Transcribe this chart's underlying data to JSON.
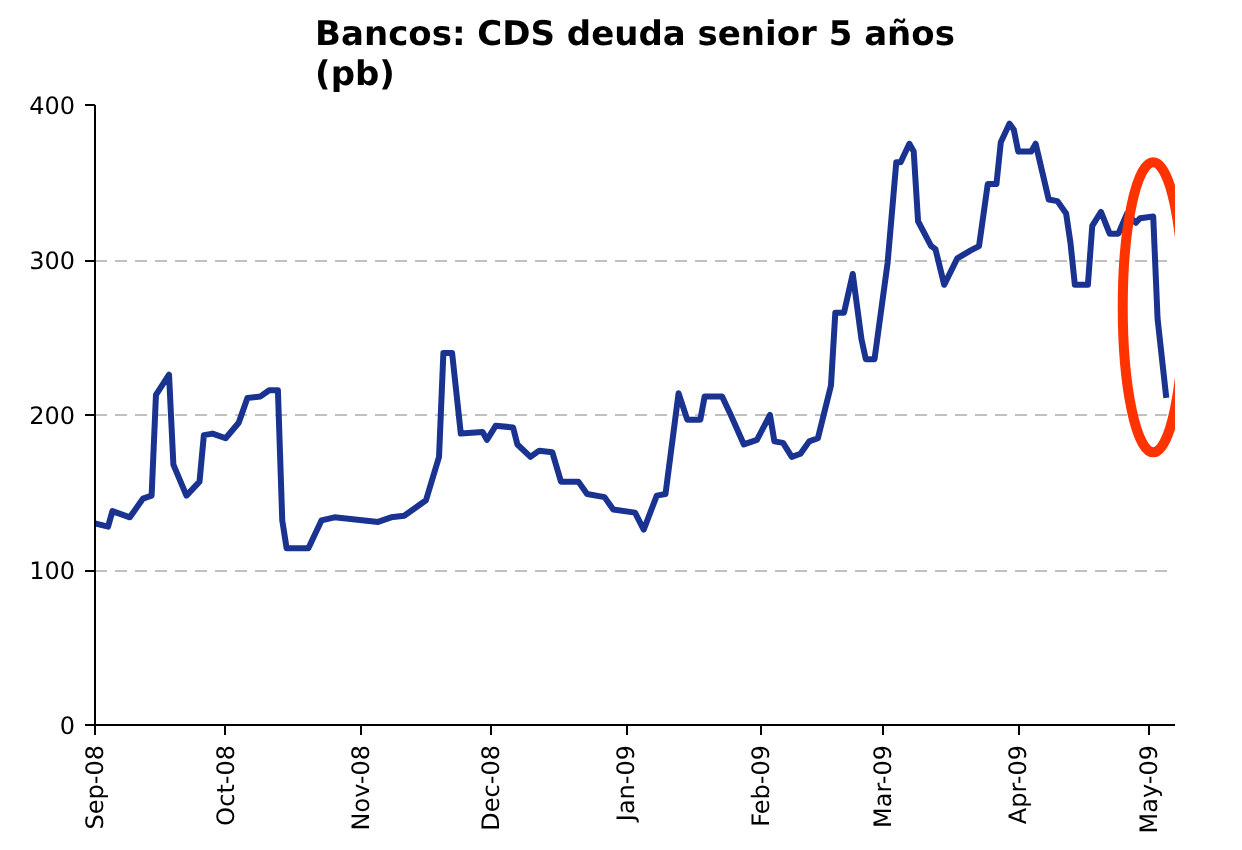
{
  "chart_data": {
    "type": "line",
    "title": "Bancos: CDS deuda senior 5 años\n(pb)",
    "x": [
      "2008-09-01",
      "2008-09-04",
      "2008-09-05",
      "2008-09-09",
      "2008-09-12",
      "2008-09-14",
      "2008-09-15",
      "2008-09-18",
      "2008-09-19",
      "2008-09-22",
      "2008-09-25",
      "2008-09-26",
      "2008-09-28",
      "2008-10-01",
      "2008-10-04",
      "2008-10-06",
      "2008-10-09",
      "2008-10-11",
      "2008-10-13",
      "2008-10-14",
      "2008-10-15",
      "2008-10-20",
      "2008-10-23",
      "2008-10-26",
      "2008-11-05",
      "2008-11-08",
      "2008-11-11",
      "2008-11-14",
      "2008-11-16",
      "2008-11-19",
      "2008-11-20",
      "2008-11-22",
      "2008-11-24",
      "2008-11-29",
      "2008-11-30",
      "2008-12-02",
      "2008-12-06",
      "2008-12-07",
      "2008-12-10",
      "2008-12-12",
      "2008-12-15",
      "2008-12-17",
      "2008-12-21",
      "2008-12-23",
      "2008-12-27",
      "2008-12-29",
      "2009-01-03",
      "2009-01-05",
      "2009-01-08",
      "2009-01-10",
      "2009-01-13",
      "2009-01-15",
      "2009-01-18",
      "2009-01-19",
      "2009-01-23",
      "2009-01-25",
      "2009-01-28",
      "2009-01-31",
      "2009-02-03",
      "2009-02-04",
      "2009-02-06",
      "2009-02-08",
      "2009-02-10",
      "2009-02-12",
      "2009-02-14",
      "2009-02-17",
      "2009-02-18",
      "2009-02-20",
      "2009-02-22",
      "2009-02-24",
      "2009-02-25",
      "2009-02-27",
      "2009-03-02",
      "2009-03-04",
      "2009-03-05",
      "2009-03-07",
      "2009-03-08",
      "2009-03-09",
      "2009-03-12",
      "2009-03-13",
      "2009-03-15",
      "2009-03-18",
      "2009-03-21",
      "2009-03-23",
      "2009-03-25",
      "2009-03-27",
      "2009-03-28",
      "2009-03-30",
      "2009-03-31",
      "2009-04-01",
      "2009-04-04",
      "2009-04-05",
      "2009-04-08",
      "2009-04-10",
      "2009-04-12",
      "2009-04-13",
      "2009-04-14",
      "2009-04-17",
      "2009-04-18",
      "2009-04-20",
      "2009-04-22",
      "2009-04-24",
      "2009-04-26",
      "2009-04-28",
      "2009-04-29",
      "2009-05-02",
      "2009-05-03",
      "2009-05-05"
    ],
    "series": [
      {
        "color": "#1a3390",
        "values": [
          130,
          128,
          138,
          134,
          146,
          148,
          213,
          226,
          168,
          148,
          157,
          187,
          188,
          185,
          195,
          211,
          212,
          216,
          216,
          132,
          114,
          114,
          132,
          134,
          131,
          134,
          135,
          141,
          145,
          173,
          240,
          240,
          188,
          189,
          184,
          193,
          192,
          181,
          173,
          177,
          176,
          157,
          157,
          149,
          147,
          139,
          137,
          126,
          148,
          149,
          214,
          197,
          197,
          212,
          212,
          200,
          181,
          184,
          200,
          183,
          182,
          173,
          175,
          183,
          185,
          219,
          266,
          266,
          291,
          249,
          236,
          236,
          298,
          363,
          363,
          375,
          370,
          325,
          309,
          307,
          284,
          301,
          306,
          309,
          349,
          349,
          376,
          388,
          384,
          370,
          370,
          375,
          339,
          338,
          330,
          311,
          284,
          284,
          322,
          331,
          317,
          317,
          330,
          324,
          327,
          328,
          262,
          211
        ]
      }
    ],
    "xlim": [
      "2008-09-01",
      "2009-05-07"
    ],
    "xticks": [
      {
        "value": "2008-09-01",
        "label": "Sep-08"
      },
      {
        "value": "2008-10-01",
        "label": "Oct-08"
      },
      {
        "value": "2008-11-01",
        "label": "Nov-08"
      },
      {
        "value": "2008-12-01",
        "label": "Dec-08"
      },
      {
        "value": "2009-01-01",
        "label": "Jan-09"
      },
      {
        "value": "2009-02-01",
        "label": "Feb-09"
      },
      {
        "value": "2009-03-01",
        "label": "Mar-09"
      },
      {
        "value": "2009-04-01",
        "label": "Apr-09"
      },
      {
        "value": "2009-05-01",
        "label": "May-09"
      }
    ],
    "ylim": [
      0,
      400
    ],
    "yticks": [
      0,
      100,
      200,
      300,
      400
    ],
    "grid": "y",
    "marker": "none",
    "line_style": "solid"
  }
}
